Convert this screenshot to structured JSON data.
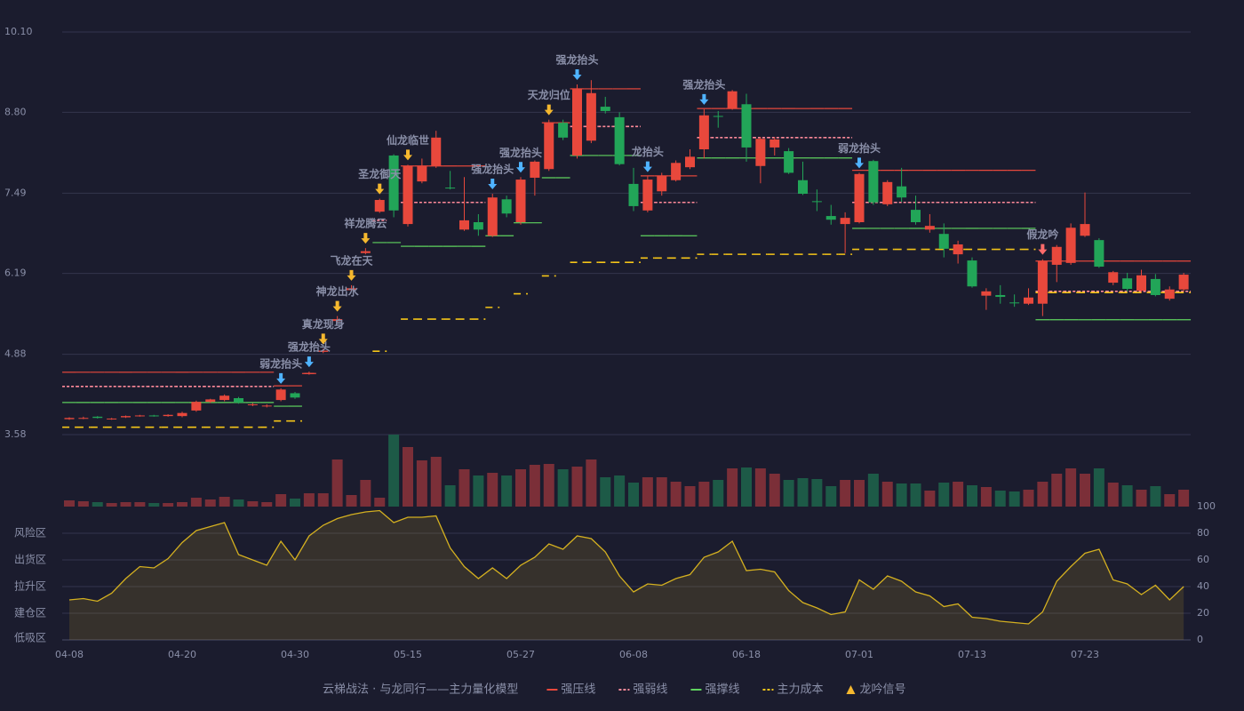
{
  "chart_data": [
    {
      "type": "candlestick",
      "title": "云梯战法 · 与龙同行——主力量化模型",
      "categories": [
        "04-08",
        null,
        null,
        null,
        null,
        null,
        null,
        null,
        "04-20",
        null,
        null,
        null,
        null,
        null,
        null,
        null,
        "04-30",
        null,
        null,
        null,
        null,
        null,
        null,
        null,
        "05-15",
        null,
        null,
        null,
        null,
        null,
        null,
        null,
        "05-27",
        null,
        null,
        null,
        null,
        null,
        null,
        null,
        "06-08",
        null,
        null,
        null,
        null,
        null,
        null,
        null,
        "06-18",
        null,
        null,
        null,
        null,
        null,
        null,
        null,
        "07-01",
        null,
        null,
        null,
        null,
        null,
        null,
        null,
        "07-13",
        null,
        null,
        null,
        null,
        null,
        null,
        null,
        "07-23",
        null,
        null,
        null,
        null,
        null,
        null,
        null
      ],
      "ohlc": [
        [
          3.83,
          3.86,
          3.82,
          3.85
        ],
        [
          3.84,
          3.87,
          3.83,
          3.85
        ],
        [
          3.87,
          3.88,
          3.84,
          3.85
        ],
        [
          3.83,
          3.85,
          3.82,
          3.84
        ],
        [
          3.86,
          3.89,
          3.85,
          3.88
        ],
        [
          3.88,
          3.9,
          3.87,
          3.89
        ],
        [
          3.89,
          3.9,
          3.87,
          3.88
        ],
        [
          3.88,
          3.91,
          3.87,
          3.9
        ],
        [
          3.88,
          3.95,
          3.86,
          3.93
        ],
        [
          3.97,
          4.13,
          3.95,
          4.11
        ],
        [
          4.11,
          4.16,
          4.09,
          4.15
        ],
        [
          4.14,
          4.23,
          4.12,
          4.21
        ],
        [
          4.17,
          4.19,
          4.08,
          4.1
        ],
        [
          4.06,
          4.09,
          4.04,
          4.07
        ],
        [
          4.04,
          4.07,
          4.02,
          4.05
        ],
        [
          4.14,
          4.33,
          4.12,
          4.31
        ],
        [
          4.25,
          4.27,
          4.16,
          4.18
        ],
        [
          4.56,
          4.6,
          4.55,
          4.58
        ],
        [
          4.92,
          4.97,
          4.9,
          4.94
        ],
        [
          5.42,
          5.5,
          5.4,
          5.45
        ],
        [
          5.92,
          6.0,
          5.9,
          5.95
        ],
        [
          6.52,
          6.6,
          6.5,
          6.55
        ],
        [
          7.19,
          7.4,
          7.17,
          7.38
        ],
        [
          8.1,
          8.12,
          7.1,
          7.21
        ],
        [
          6.99,
          7.95,
          6.95,
          7.93
        ],
        [
          7.68,
          8.05,
          7.65,
          7.93
        ],
        [
          7.93,
          8.5,
          7.9,
          8.39
        ],
        [
          7.58,
          7.85,
          7.55,
          7.57
        ],
        [
          6.9,
          7.75,
          6.88,
          7.05
        ],
        [
          7.02,
          7.15,
          6.8,
          6.9
        ],
        [
          6.8,
          7.48,
          6.78,
          7.42
        ],
        [
          7.39,
          7.45,
          7.1,
          7.16
        ],
        [
          7.02,
          7.75,
          6.98,
          7.71
        ],
        [
          7.74,
          8.02,
          7.45,
          8.0
        ],
        [
          7.88,
          8.68,
          7.85,
          8.63
        ],
        [
          8.63,
          8.68,
          8.35,
          8.39
        ],
        [
          8.1,
          9.25,
          8.05,
          9.18
        ],
        [
          8.34,
          9.32,
          8.3,
          9.11
        ],
        [
          8.89,
          9.05,
          8.78,
          8.82
        ],
        [
          8.72,
          8.8,
          7.94,
          7.96
        ],
        [
          7.64,
          7.9,
          7.2,
          7.28
        ],
        [
          7.21,
          7.76,
          7.18,
          7.71
        ],
        [
          7.52,
          7.82,
          7.45,
          7.77
        ],
        [
          7.7,
          8.02,
          7.68,
          7.98
        ],
        [
          7.91,
          8.2,
          7.88,
          8.08
        ],
        [
          8.2,
          8.85,
          8.05,
          8.75
        ],
        [
          8.74,
          8.82,
          8.55,
          8.73
        ],
        [
          8.86,
          9.16,
          8.84,
          9.14
        ],
        [
          8.93,
          9.1,
          8.0,
          8.23
        ],
        [
          7.93,
          8.4,
          7.65,
          8.37
        ],
        [
          8.23,
          8.4,
          8.1,
          8.36
        ],
        [
          8.17,
          8.22,
          7.8,
          7.82
        ],
        [
          7.7,
          8.0,
          7.46,
          7.48
        ],
        [
          7.36,
          7.55,
          7.2,
          7.35
        ],
        [
          7.12,
          7.3,
          6.98,
          7.06
        ],
        [
          6.99,
          7.18,
          6.52,
          7.09
        ],
        [
          7.02,
          7.82,
          7.0,
          7.8
        ],
        [
          8.01,
          8.03,
          7.3,
          7.34
        ],
        [
          7.31,
          7.7,
          7.28,
          7.67
        ],
        [
          7.6,
          7.9,
          7.35,
          7.42
        ],
        [
          7.22,
          7.45,
          6.98,
          7.02
        ],
        [
          6.9,
          7.15,
          6.85,
          6.96
        ],
        [
          6.83,
          7.0,
          6.45,
          6.59
        ],
        [
          6.5,
          6.72,
          6.35,
          6.66
        ],
        [
          6.4,
          6.45,
          5.96,
          5.98
        ],
        [
          5.83,
          5.95,
          5.6,
          5.9
        ],
        [
          5.84,
          6.0,
          5.7,
          5.81
        ],
        [
          5.72,
          5.85,
          5.65,
          5.71
        ],
        [
          5.7,
          5.95,
          5.68,
          5.8
        ],
        [
          5.7,
          6.42,
          5.5,
          6.39
        ],
        [
          6.33,
          6.65,
          6.05,
          6.62
        ],
        [
          6.36,
          7.0,
          6.33,
          6.93
        ],
        [
          6.8,
          7.5,
          6.78,
          6.99
        ],
        [
          6.73,
          6.76,
          6.28,
          6.3
        ],
        [
          6.04,
          6.23,
          6.0,
          6.21
        ],
        [
          6.11,
          6.2,
          5.9,
          5.94
        ],
        [
          5.91,
          6.25,
          5.88,
          6.16
        ],
        [
          6.1,
          6.18,
          5.82,
          5.84
        ],
        [
          5.78,
          5.98,
          5.75,
          5.93
        ],
        [
          5.93,
          6.2,
          5.9,
          6.17
        ]
      ],
      "up_color": "#e8483c",
      "down_color": "#22a558",
      "ylim": [
        3.58,
        10.1
      ],
      "yticks": [
        3.58,
        4.88,
        6.19,
        7.49,
        {
          "value": 8.8,
          "label": "8.80"
        },
        {
          "value": 10.1,
          "label": "10.10"
        }
      ],
      "grid": true,
      "series": [
        {
          "name": "强压线",
          "color": "#e8483c",
          "dash": false,
          "values": [
            4.59,
            4.59,
            4.59,
            4.59,
            4.59,
            4.59,
            4.59,
            4.59,
            4.59,
            4.59,
            4.59,
            4.59,
            4.59,
            4.59,
            4.59,
            4.37,
            4.37,
            4.57,
            null,
            null,
            null,
            null,
            null,
            null,
            7.93,
            7.93,
            7.93,
            7.93,
            7.93,
            7.93,
            null,
            null,
            null,
            null,
            8.63,
            8.63,
            9.18,
            9.18,
            9.18,
            9.18,
            9.18,
            7.77,
            7.77,
            7.77,
            7.77,
            8.86,
            8.86,
            8.86,
            8.86,
            8.86,
            8.86,
            8.86,
            8.86,
            8.86,
            8.86,
            8.86,
            7.86,
            7.86,
            7.86,
            7.86,
            7.86,
            7.86,
            7.86,
            7.86,
            7.86,
            7.86,
            7.86,
            7.86,
            7.86,
            6.39,
            6.39,
            6.39,
            6.39,
            6.39,
            6.39,
            6.39,
            6.39,
            6.39,
            6.39,
            6.39
          ]
        },
        {
          "name": "强弱线",
          "color": "#ff8a9a",
          "dash": true,
          "values": [
            4.36,
            4.36,
            4.36,
            4.36,
            4.36,
            4.36,
            4.36,
            4.36,
            4.36,
            4.36,
            4.36,
            4.36,
            4.36,
            4.36,
            4.36,
            null,
            null,
            null,
            null,
            null,
            null,
            null,
            7.05,
            null,
            7.34,
            7.34,
            7.34,
            7.34,
            7.34,
            7.34,
            null,
            null,
            null,
            null,
            null,
            null,
            8.57,
            8.57,
            8.57,
            8.57,
            8.57,
            7.34,
            7.34,
            7.34,
            7.34,
            8.39,
            8.39,
            8.39,
            8.39,
            8.39,
            8.39,
            8.39,
            8.39,
            8.39,
            8.39,
            8.39,
            7.34,
            7.34,
            7.34,
            7.34,
            7.34,
            7.34,
            7.34,
            7.34,
            7.34,
            7.34,
            7.34,
            7.34,
            7.34,
            5.9,
            5.9,
            5.9,
            5.9,
            5.9,
            5.9,
            5.9,
            5.9,
            5.9,
            5.9,
            5.9
          ]
        },
        {
          "name": "强撑线",
          "color": "#5fd35f",
          "dash": false,
          "values": [
            4.1,
            4.1,
            4.1,
            4.1,
            4.1,
            4.1,
            4.1,
            4.1,
            4.1,
            4.1,
            4.1,
            4.1,
            4.1,
            4.1,
            4.1,
            4.04,
            4.04,
            null,
            null,
            null,
            null,
            null,
            6.69,
            6.69,
            6.63,
            6.63,
            6.63,
            6.63,
            6.63,
            6.63,
            6.8,
            6.8,
            7.01,
            7.01,
            7.74,
            7.74,
            8.1,
            8.1,
            8.1,
            8.1,
            8.1,
            6.8,
            6.8,
            6.8,
            6.8,
            8.06,
            8.06,
            8.06,
            8.06,
            8.06,
            8.06,
            8.06,
            8.06,
            8.06,
            8.06,
            8.06,
            6.92,
            6.92,
            6.92,
            6.92,
            6.92,
            6.92,
            6.92,
            6.92,
            6.92,
            6.92,
            6.92,
            6.92,
            6.92,
            5.44,
            5.44,
            5.44,
            5.44,
            5.44,
            5.44,
            5.44,
            5.44,
            5.44,
            5.44,
            5.44
          ]
        },
        {
          "name": "主力成本",
          "color": "#f5c518",
          "dash": true,
          "values": [
            3.7,
            3.7,
            3.7,
            3.7,
            3.7,
            3.7,
            3.7,
            3.7,
            3.7,
            3.7,
            3.7,
            3.7,
            3.7,
            3.7,
            3.7,
            3.8,
            3.8,
            null,
            null,
            null,
            null,
            null,
            4.93,
            null,
            5.45,
            5.45,
            5.45,
            5.45,
            5.45,
            5.45,
            5.64,
            null,
            5.86,
            null,
            6.15,
            null,
            6.37,
            6.37,
            6.37,
            6.37,
            6.37,
            6.44,
            6.44,
            6.44,
            6.44,
            6.5,
            6.5,
            6.5,
            6.5,
            6.5,
            6.5,
            6.5,
            6.5,
            6.5,
            6.5,
            6.5,
            6.58,
            6.58,
            6.58,
            6.58,
            6.58,
            6.58,
            6.58,
            6.58,
            6.58,
            6.58,
            6.58,
            6.58,
            6.58,
            5.88,
            5.88,
            5.88,
            5.88,
            5.88,
            5.88,
            5.88,
            5.88,
            5.88,
            5.88,
            5.88
          ]
        }
      ],
      "signals": {
        "name": "龙吟信号",
        "color": "#f5b82e",
        "points": [
          {
            "index": 15,
            "label": "弱龙抬头",
            "color": "#4fb3ff"
          },
          {
            "index": 17,
            "label": "强龙抬头",
            "color": "#4fb3ff"
          },
          {
            "index": 18,
            "label": "真龙现身",
            "color": "#f5b82e"
          },
          {
            "index": 19,
            "label": "神龙出水",
            "color": "#f5b82e"
          },
          {
            "index": 20,
            "label": "飞龙在天",
            "color": "#f5b82e"
          },
          {
            "index": 21,
            "label": "祥龙腾云",
            "color": "#f5b82e"
          },
          {
            "index": 22,
            "label": "圣龙御天",
            "color": "#f5b82e"
          },
          {
            "index": 24,
            "label": "仙龙临世",
            "color": "#f5b82e"
          },
          {
            "index": 30,
            "label": "强龙抬头",
            "color": "#4fb3ff"
          },
          {
            "index": 32,
            "label": "强龙抬头",
            "color": "#4fb3ff"
          },
          {
            "index": 34,
            "label": "天龙归位",
            "color": "#f5b82e"
          },
          {
            "index": 36,
            "label": "强龙抬头",
            "color": "#4fb3ff"
          },
          {
            "index": 41,
            "label": "龙抬头",
            "color": "#4fb3ff"
          },
          {
            "index": 45,
            "label": "强龙抬头",
            "color": "#4fb3ff"
          },
          {
            "index": 56,
            "label": "弱龙抬头",
            "color": "#4fb3ff"
          },
          {
            "index": 69,
            "label": "假龙吟",
            "color": "#ff6b6b"
          }
        ]
      }
    },
    {
      "type": "bar",
      "up_color": "#7b2f38",
      "down_color": "#1d5a47",
      "values": [
        7,
        6,
        5,
        4,
        5,
        5,
        4,
        4,
        5,
        10,
        8,
        11,
        8,
        6,
        5,
        14,
        9,
        15,
        15,
        53,
        13,
        30,
        10,
        81,
        67,
        52,
        56,
        24,
        42,
        35,
        38,
        35,
        42,
        47,
        48,
        42,
        45,
        53,
        33,
        35,
        27,
        33,
        33,
        28,
        23,
        28,
        30,
        43,
        44,
        43,
        37,
        30,
        32,
        31,
        23,
        30,
        30,
        37,
        28,
        26,
        26,
        18,
        27,
        28,
        24,
        22,
        18,
        17,
        19,
        28,
        37,
        43,
        37,
        43,
        27,
        24,
        19,
        23,
        14,
        19
      ]
    },
    {
      "type": "area",
      "color": "#d4b020",
      "values": [
        30,
        31,
        29,
        35,
        46,
        55,
        54,
        61,
        73,
        82,
        85,
        88,
        64,
        60,
        56,
        74,
        60,
        78,
        86,
        91,
        94,
        96,
        97,
        88,
        92,
        92,
        93,
        69,
        55,
        46,
        54,
        46,
        56,
        62,
        72,
        68,
        78,
        76,
        66,
        48,
        36,
        42,
        41,
        46,
        49,
        62,
        66,
        74,
        52,
        53,
        51,
        37,
        28,
        24,
        19,
        21,
        45,
        38,
        48,
        44,
        36,
        33,
        25,
        27,
        17,
        16,
        14,
        13,
        12,
        21,
        44,
        55,
        65,
        68,
        45,
        42,
        34,
        41,
        30,
        40
      ],
      "ylim": [
        0,
        100
      ],
      "yticks": [
        0,
        20,
        40,
        60,
        80,
        100
      ],
      "ytick_colors": [
        "#e84040",
        "#f0a030",
        "#4a90e2",
        "#e040e0",
        "#f0a030",
        "#40e040"
      ],
      "zones": [
        {
          "value": 80,
          "label": "风险区",
          "color": "#f0a030"
        },
        {
          "value": 60,
          "label": "出货区",
          "color": "#e040e0"
        },
        {
          "value": 40,
          "label": "拉升区",
          "color": "#4a90e2"
        },
        {
          "value": 20,
          "label": "建仓区",
          "color": "#e05050"
        },
        {
          "value": 0,
          "label": "低吸区",
          "color": "#e03040"
        }
      ]
    }
  ]
}
